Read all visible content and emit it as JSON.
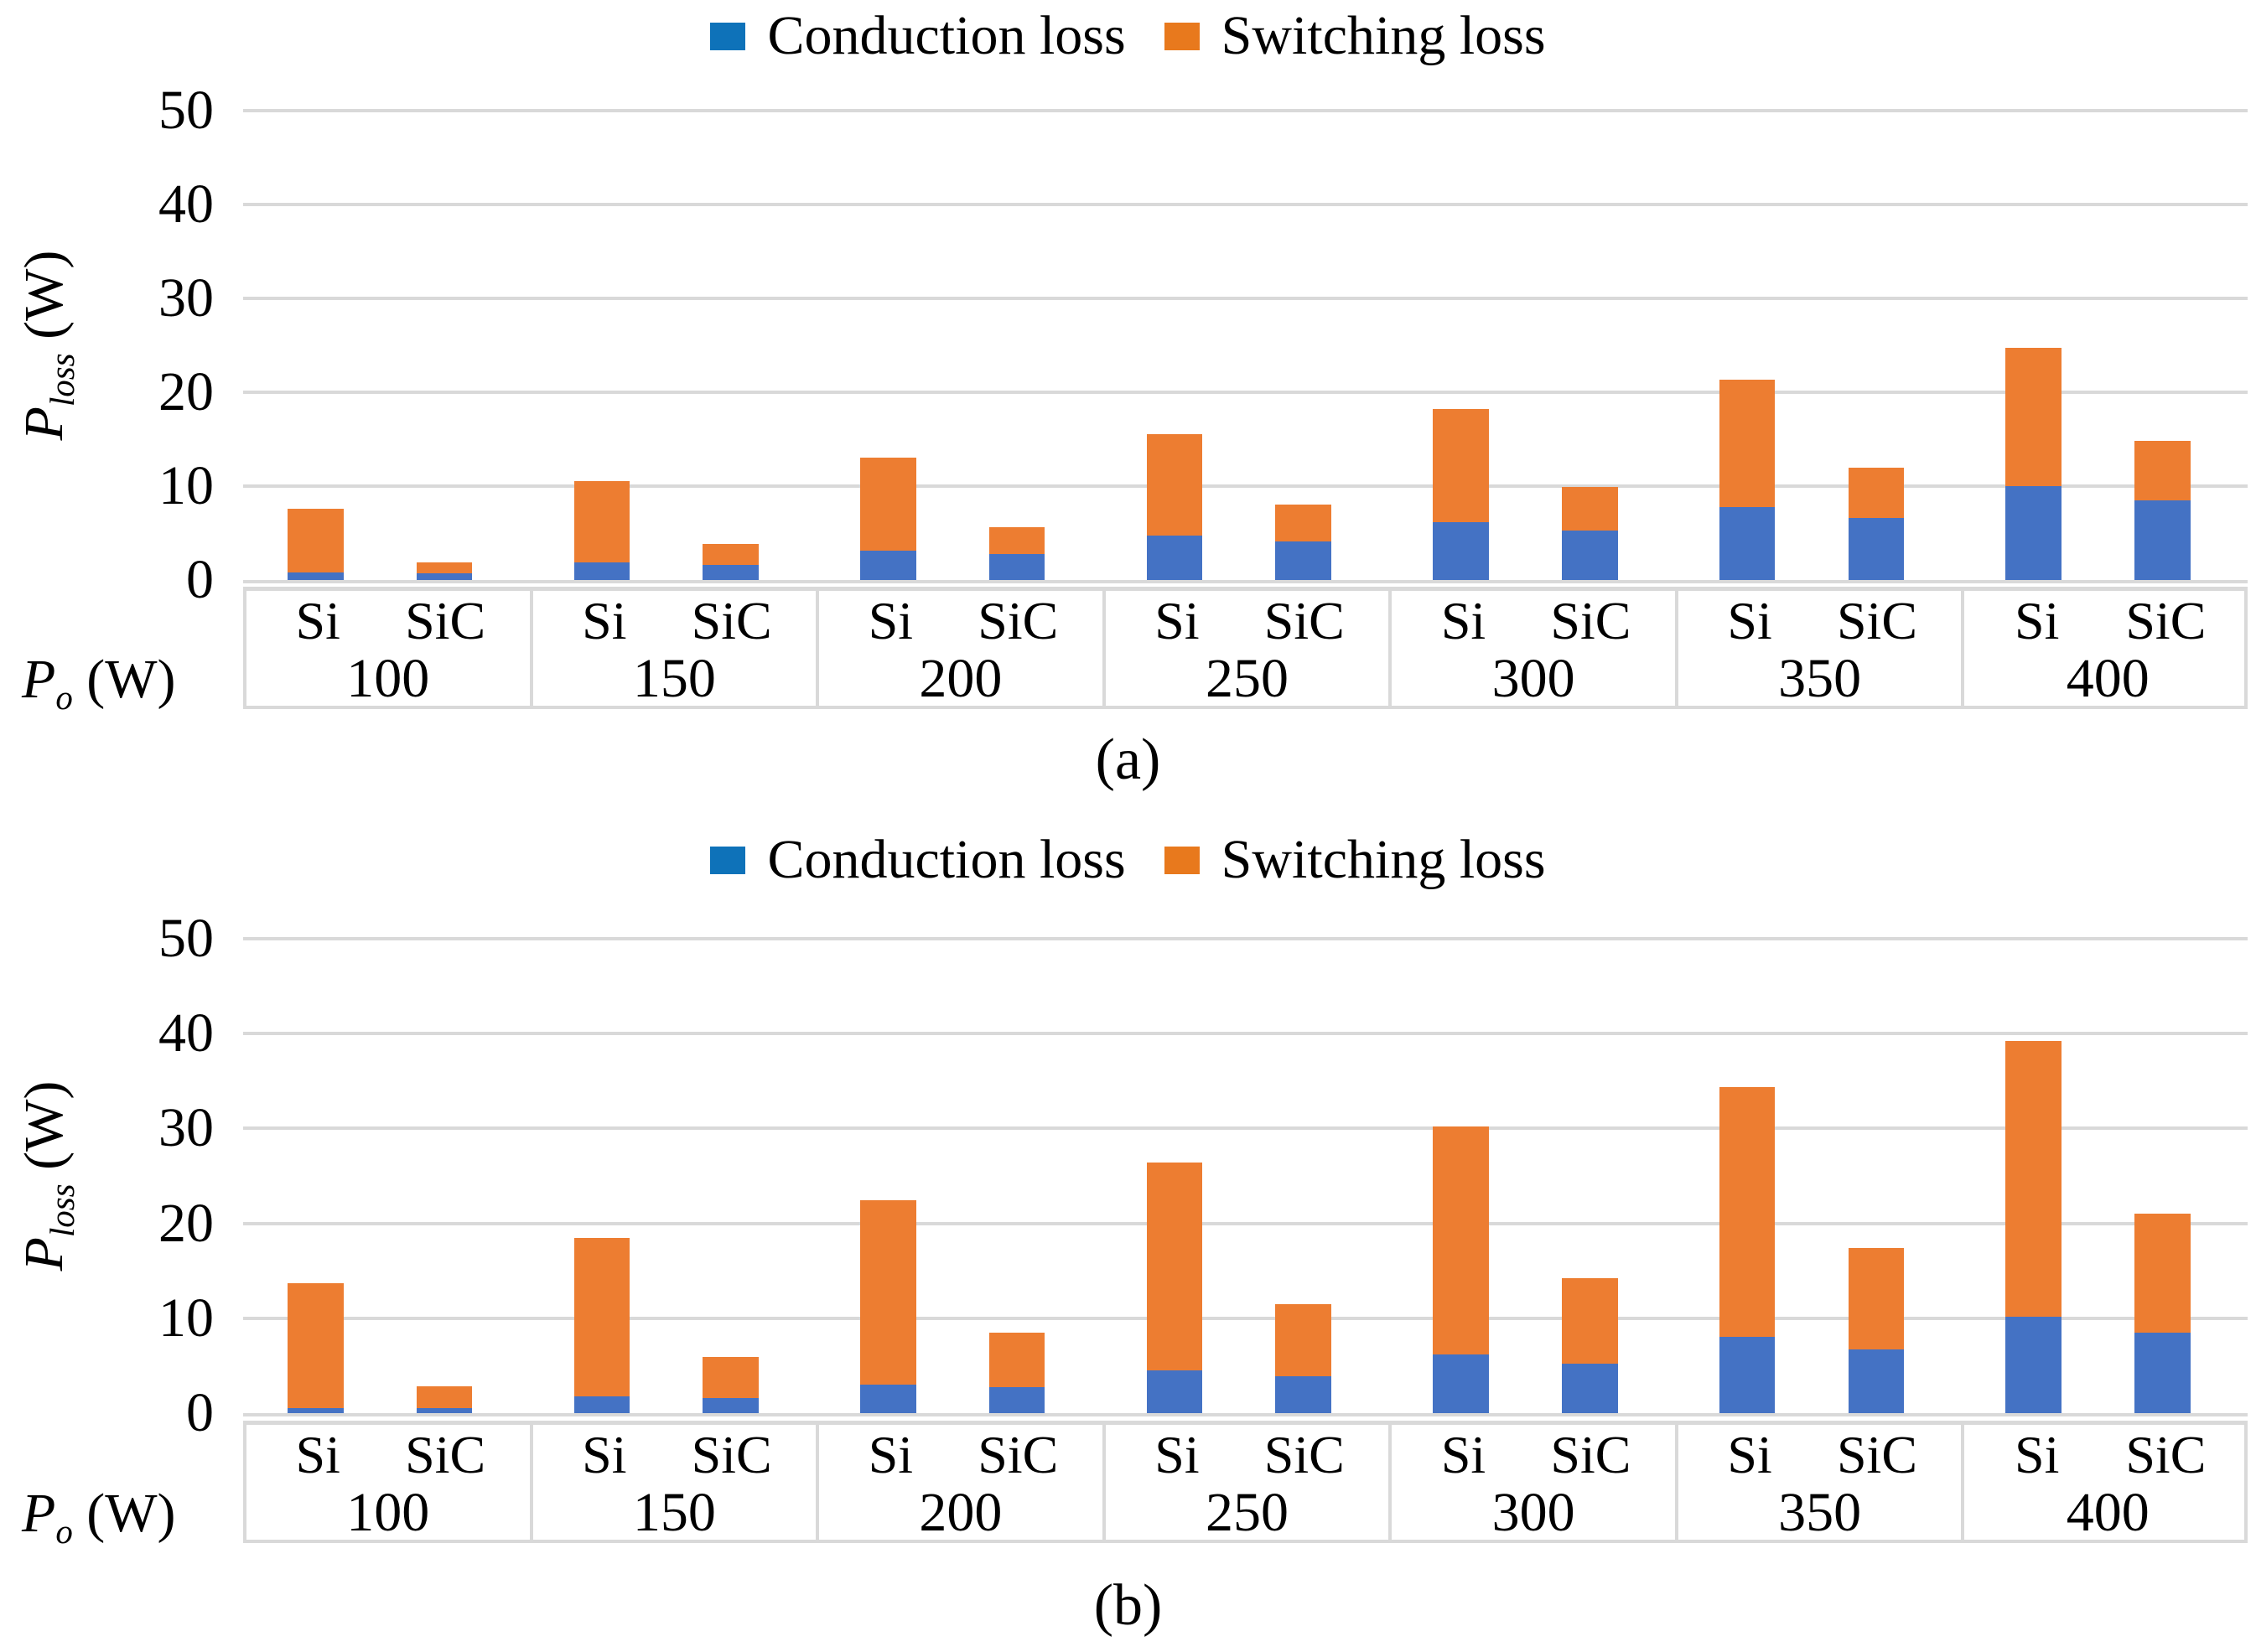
{
  "colors": {
    "conduction_bar": "#4472C4",
    "switching_bar": "#ED7D31",
    "conduction_legend": "#0E72B9",
    "switching_legend": "#E8791D",
    "gridline": "#D9D9D9",
    "text": "#000000",
    "background": "#FFFFFF"
  },
  "legend": {
    "items": [
      {
        "label": "Conduction loss"
      },
      {
        "label": "Switching loss"
      }
    ]
  },
  "y_axis": {
    "symbol": "P",
    "subscript": "loss",
    "unit": "(W)"
  },
  "x_axis": {
    "symbol": "P",
    "subscript": "o",
    "unit": "(W)"
  },
  "chart_data": [
    {
      "type": "bar",
      "stacked": true,
      "caption": "(a)",
      "xlabel": "P_o (W)",
      "ylabel": "P_loss (W)",
      "ylim": [
        0,
        50
      ],
      "yticks": [
        0,
        10,
        20,
        30,
        40,
        50
      ],
      "grid": true,
      "legend_position": "top-center",
      "legend": [
        "Conduction loss",
        "Switching loss"
      ],
      "categories": [
        "100",
        "150",
        "200",
        "250",
        "300",
        "350",
        "400"
      ],
      "groups": [
        {
          "category": "100",
          "bars": [
            {
              "device": "Si",
              "conduction": 0.8,
              "switching": 6.8,
              "total": 7.6
            },
            {
              "device": "SiC",
              "conduction": 0.7,
              "switching": 1.2,
              "total": 1.9
            }
          ]
        },
        {
          "category": "150",
          "bars": [
            {
              "device": "Si",
              "conduction": 1.9,
              "switching": 8.6,
              "total": 10.5
            },
            {
              "device": "SiC",
              "conduction": 1.6,
              "switching": 2.2,
              "total": 3.8
            }
          ]
        },
        {
          "category": "200",
          "bars": [
            {
              "device": "Si",
              "conduction": 3.1,
              "switching": 9.9,
              "total": 13.0
            },
            {
              "device": "SiC",
              "conduction": 2.8,
              "switching": 2.8,
              "total": 5.6
            }
          ]
        },
        {
          "category": "250",
          "bars": [
            {
              "device": "Si",
              "conduction": 4.7,
              "switching": 10.8,
              "total": 15.5
            },
            {
              "device": "SiC",
              "conduction": 4.1,
              "switching": 3.9,
              "total": 8.0
            }
          ]
        },
        {
          "category": "300",
          "bars": [
            {
              "device": "Si",
              "conduction": 6.2,
              "switching": 12.0,
              "total": 18.2
            },
            {
              "device": "SiC",
              "conduction": 5.3,
              "switching": 4.6,
              "total": 9.9
            }
          ]
        },
        {
          "category": "350",
          "bars": [
            {
              "device": "Si",
              "conduction": 7.8,
              "switching": 13.5,
              "total": 21.3
            },
            {
              "device": "SiC",
              "conduction": 6.6,
              "switching": 5.4,
              "total": 12.0
            }
          ]
        },
        {
          "category": "400",
          "bars": [
            {
              "device": "Si",
              "conduction": 10.0,
              "switching": 14.7,
              "total": 24.7
            },
            {
              "device": "SiC",
              "conduction": 8.5,
              "switching": 6.3,
              "total": 14.8
            }
          ]
        }
      ]
    },
    {
      "type": "bar",
      "stacked": true,
      "caption": "(b)",
      "xlabel": "P_o (W)",
      "ylabel": "P_loss (W)",
      "ylim": [
        0,
        50
      ],
      "yticks": [
        0,
        10,
        20,
        30,
        40,
        50
      ],
      "grid": true,
      "legend_position": "top-center",
      "legend": [
        "Conduction loss",
        "Switching loss"
      ],
      "categories": [
        "100",
        "150",
        "200",
        "250",
        "300",
        "350",
        "400"
      ],
      "groups": [
        {
          "category": "100",
          "bars": [
            {
              "device": "Si",
              "conduction": 0.5,
              "switching": 13.2,
              "total": 13.7
            },
            {
              "device": "SiC",
              "conduction": 0.5,
              "switching": 2.3,
              "total": 2.8
            }
          ]
        },
        {
          "category": "150",
          "bars": [
            {
              "device": "Si",
              "conduction": 1.8,
              "switching": 16.7,
              "total": 18.5
            },
            {
              "device": "SiC",
              "conduction": 1.6,
              "switching": 4.3,
              "total": 5.9
            }
          ]
        },
        {
          "category": "200",
          "bars": [
            {
              "device": "Si",
              "conduction": 3.0,
              "switching": 19.4,
              "total": 22.4
            },
            {
              "device": "SiC",
              "conduction": 2.7,
              "switching": 5.8,
              "total": 8.5
            }
          ]
        },
        {
          "category": "250",
          "bars": [
            {
              "device": "Si",
              "conduction": 4.5,
              "switching": 21.9,
              "total": 26.4
            },
            {
              "device": "SiC",
              "conduction": 3.9,
              "switching": 7.6,
              "total": 11.5
            }
          ]
        },
        {
          "category": "300",
          "bars": [
            {
              "device": "Si",
              "conduction": 6.2,
              "switching": 24.0,
              "total": 30.2
            },
            {
              "device": "SiC",
              "conduction": 5.2,
              "switching": 9.0,
              "total": 14.2
            }
          ]
        },
        {
          "category": "350",
          "bars": [
            {
              "device": "Si",
              "conduction": 8.0,
              "switching": 26.4,
              "total": 34.4
            },
            {
              "device": "SiC",
              "conduction": 6.7,
              "switching": 10.7,
              "total": 17.4
            }
          ]
        },
        {
          "category": "400",
          "bars": [
            {
              "device": "Si",
              "conduction": 10.2,
              "switching": 29.0,
              "total": 39.2
            },
            {
              "device": "SiC",
              "conduction": 8.5,
              "switching": 12.5,
              "total": 21.0
            }
          ]
        }
      ]
    }
  ]
}
